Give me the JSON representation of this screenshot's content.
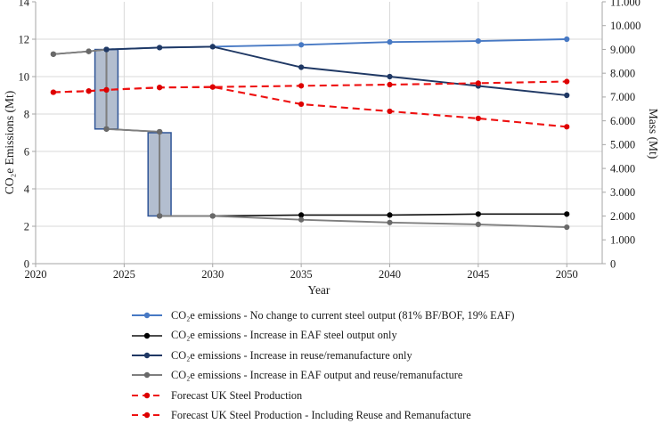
{
  "chart_data": {
    "type": "line",
    "title": "",
    "xlabel": "Year",
    "ylabel_left": "CO₂e Emissions (Mt)",
    "ylabel_right": "Mass (Mt)",
    "grid": true,
    "legend_position": "bottom-left",
    "x_axis": {
      "min": 2020,
      "max": 2052,
      "ticks": [
        2020,
        2025,
        2030,
        2035,
        2040,
        2045,
        2050
      ],
      "tick_labels": [
        "2020",
        "2025",
        "2030",
        "2035",
        "2040",
        "2045",
        "2050"
      ]
    },
    "y_axis_left": {
      "min": 0,
      "max": 14,
      "ticks": [
        0,
        2,
        4,
        6,
        8,
        10,
        12,
        14
      ],
      "tick_labels": [
        "0",
        "2",
        "4",
        "6",
        "8",
        "10",
        "12",
        "14"
      ]
    },
    "y_axis_right": {
      "min": 0,
      "max": 11,
      "ticks": [
        0,
        1,
        2,
        3,
        4,
        5,
        6,
        7,
        8,
        9,
        10,
        11
      ],
      "tick_labels": [
        "0",
        "1.000",
        "2.000",
        "3.000",
        "4.000",
        "5.000",
        "6.000",
        "7.000",
        "8.000",
        "9.000",
        "10.000",
        "11.000"
      ]
    },
    "transition_bars": [
      {
        "x0": 2023.35,
        "x1": 2024.65,
        "y0": 7.2,
        "y1": 11.45,
        "fill": "#B3BECF",
        "stroke": "#2F5597"
      },
      {
        "x0": 2026.35,
        "x1": 2027.65,
        "y0": 2.55,
        "y1": 7.0,
        "fill": "#B3BECF",
        "stroke": "#2F5597"
      }
    ],
    "series": [
      {
        "name": "CO₂e emissions - No change to current steel output (81% BF/BOF, 19% EAF)",
        "axis": "left",
        "style": "solid",
        "color": "#4779C4",
        "marker_color": "#4779C4",
        "width": 1.9,
        "points": [
          [
            2024,
            11.45
          ],
          [
            2027,
            11.55
          ],
          [
            2030,
            11.6
          ],
          [
            2035,
            11.7
          ],
          [
            2040,
            11.85
          ],
          [
            2045,
            11.9
          ],
          [
            2050,
            12.0
          ]
        ]
      },
      {
        "name": "CO₂e emissions - Increase in EAF steel output only",
        "axis": "left",
        "style": "solid",
        "color": "#111111",
        "marker_color": "#000000",
        "width": 1.6,
        "points": [
          [
            2021,
            11.2
          ],
          [
            2023,
            11.35
          ],
          [
            2024,
            11.45
          ],
          [
            2024,
            7.2
          ],
          [
            2027,
            7.05
          ],
          [
            2027,
            2.55
          ],
          [
            2030,
            2.55
          ],
          [
            2035,
            2.6
          ],
          [
            2040,
            2.6
          ],
          [
            2045,
            2.65
          ],
          [
            2050,
            2.65
          ]
        ]
      },
      {
        "name": "CO₂e emissions - Increase in reuse/remanufacture only",
        "axis": "left",
        "style": "solid",
        "color": "#1F3864",
        "marker_color": "#1F3864",
        "width": 1.9,
        "points": [
          [
            2024,
            11.45
          ],
          [
            2027,
            11.55
          ],
          [
            2030,
            11.6
          ],
          [
            2035,
            10.5
          ],
          [
            2040,
            10.0
          ],
          [
            2045,
            9.5
          ],
          [
            2050,
            9.0
          ]
        ]
      },
      {
        "name": "CO₂e emissions - Increase in EAF output and reuse/remanufacture",
        "axis": "left",
        "style": "solid",
        "color": "#7F7F7F",
        "marker_color": "#696969",
        "width": 1.9,
        "points": [
          [
            2021,
            11.2
          ],
          [
            2023,
            11.35
          ],
          [
            2024,
            11.45
          ],
          [
            2024,
            7.2
          ],
          [
            2027,
            7.05
          ],
          [
            2027,
            2.55
          ],
          [
            2030,
            2.55
          ],
          [
            2035,
            2.35
          ],
          [
            2040,
            2.2
          ],
          [
            2045,
            2.1
          ],
          [
            2050,
            1.95
          ]
        ]
      },
      {
        "name": "Forecast UK Steel Production",
        "axis": "right",
        "style": "dashed",
        "color": "#EE1111",
        "marker_color": "#DD0000",
        "width": 2.1,
        "points": [
          [
            2021,
            7.2
          ],
          [
            2023,
            7.25
          ],
          [
            2024,
            7.3
          ],
          [
            2027,
            7.4
          ],
          [
            2030,
            7.42
          ],
          [
            2035,
            7.47
          ],
          [
            2040,
            7.52
          ],
          [
            2045,
            7.58
          ],
          [
            2050,
            7.65
          ]
        ]
      },
      {
        "name": "Forecast UK Steel Production - Including Reuse and Remanufacture",
        "axis": "right",
        "style": "dashed",
        "color": "#EE1111",
        "marker_color": "#DD0000",
        "width": 2.1,
        "points": [
          [
            2021,
            7.2
          ],
          [
            2023,
            7.25
          ],
          [
            2024,
            7.3
          ],
          [
            2027,
            7.4
          ],
          [
            2030,
            7.42
          ],
          [
            2035,
            6.7
          ],
          [
            2040,
            6.4
          ],
          [
            2045,
            6.1
          ],
          [
            2050,
            5.75
          ]
        ]
      }
    ]
  },
  "legend": {
    "items": [
      "CO₂e emissions - No change to current steel output (81% BF/BOF, 19% EAF)",
      "CO₂e emissions - Increase in EAF steel output only",
      "CO₂e emissions - Increase in reuse/remanufacture only",
      "CO₂e emissions - Increase in EAF output and reuse/remanufacture",
      "Forecast UK Steel Production",
      "Forecast UK Steel Production - Including Reuse and Remanufacture"
    ]
  }
}
